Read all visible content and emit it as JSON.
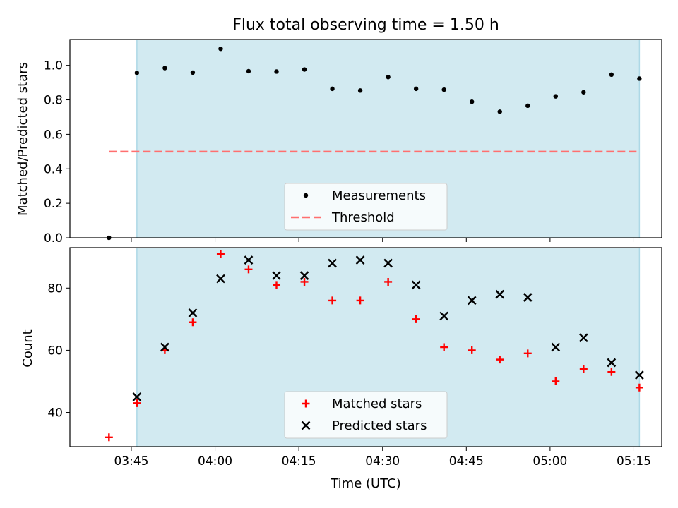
{
  "title": "Flux total observing time = 1.50 h",
  "colors": {
    "observing_band": "#add8e6",
    "matched": "#ff0000",
    "predicted": "#000000",
    "measurement": "#000000",
    "threshold": "#ff6f6f"
  },
  "chart_data": [
    {
      "type": "scatter",
      "xlabel": "",
      "ylabel": "Matched/Predicted stars",
      "x_range": [
        "03:34",
        "05:20"
      ],
      "ylim": [
        0,
        1.15
      ],
      "yticks": [
        0.0,
        0.2,
        0.4,
        0.6,
        0.8,
        1.0
      ],
      "ytick_labels": [
        "0.0",
        "0.2",
        "0.4",
        "0.6",
        "0.8",
        "1.0"
      ],
      "observing_band": [
        "03:46",
        "05:16"
      ],
      "legend_position": "bottom-center",
      "series": [
        {
          "name": "Measurements",
          "marker": "dot",
          "x": [
            "03:41",
            "03:46",
            "03:51",
            "03:56",
            "04:01",
            "04:06",
            "04:11",
            "04:16",
            "04:21",
            "04:26",
            "04:31",
            "04:36",
            "04:41",
            "04:46",
            "04:51",
            "04:56",
            "05:01",
            "05:06",
            "05:11",
            "05:16"
          ],
          "y": [
            0.0,
            0.956,
            0.984,
            0.958,
            1.096,
            0.966,
            0.964,
            0.976,
            0.864,
            0.854,
            0.932,
            0.864,
            0.859,
            0.789,
            0.731,
            0.766,
            0.82,
            0.844,
            0.946,
            0.923
          ]
        },
        {
          "name": "Threshold",
          "marker": "dashed-line",
          "x": [
            "03:41",
            "05:16"
          ],
          "y": [
            0.5,
            0.5
          ]
        }
      ]
    },
    {
      "type": "scatter",
      "xlabel": "Time (UTC)",
      "ylabel": "Count",
      "x_range": [
        "03:34",
        "05:20"
      ],
      "ylim": [
        29,
        93
      ],
      "yticks": [
        40,
        60,
        80
      ],
      "ytick_labels": [
        "40",
        "60",
        "80"
      ],
      "xtick_labels": [
        "03:45",
        "04:00",
        "04:15",
        "04:30",
        "04:45",
        "05:00",
        "05:15"
      ],
      "observing_band": [
        "03:46",
        "05:16"
      ],
      "legend_position": "bottom-center",
      "series": [
        {
          "name": "Matched stars",
          "marker": "plus",
          "x": [
            "03:41",
            "03:46",
            "03:51",
            "03:56",
            "04:01",
            "04:06",
            "04:11",
            "04:16",
            "04:21",
            "04:26",
            "04:31",
            "04:36",
            "04:41",
            "04:46",
            "04:51",
            "04:56",
            "05:01",
            "05:06",
            "05:11",
            "05:16"
          ],
          "y": [
            32,
            43,
            60,
            69,
            91,
            86,
            81,
            82,
            76,
            76,
            82,
            70,
            61,
            60,
            57,
            59,
            50,
            54,
            53,
            48
          ]
        },
        {
          "name": "Predicted stars",
          "marker": "x",
          "x": [
            "03:46",
            "03:51",
            "03:56",
            "04:01",
            "04:06",
            "04:11",
            "04:16",
            "04:21",
            "04:26",
            "04:31",
            "04:36",
            "04:41",
            "04:46",
            "04:51",
            "04:56",
            "05:01",
            "05:06",
            "05:11",
            "05:16"
          ],
          "y": [
            45,
            61,
            72,
            83,
            89,
            84,
            84,
            88,
            89,
            88,
            81,
            71,
            76,
            78,
            77,
            61,
            64,
            56,
            52
          ]
        }
      ]
    }
  ]
}
